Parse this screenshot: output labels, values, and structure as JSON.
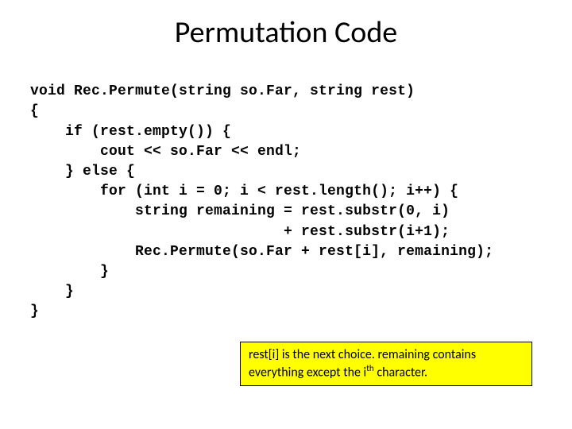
{
  "slide": {
    "title": "Permutation Code",
    "title_fontsize": 38,
    "title_color": "#000000",
    "background_color": "#ffffff"
  },
  "code": {
    "font_family": "Courier New",
    "font_weight": "bold",
    "font_size": 18,
    "color": "#000000",
    "lines": [
      "void Rec.Permute(string so.Far, string rest)",
      "{",
      "    if (rest.empty()) {",
      "        cout << so.Far << endl;",
      "    } else {",
      "        for (int i = 0; i < rest.length(); i++) {",
      "            string remaining = rest.substr(0, i)",
      "                             + rest.substr(i+1);",
      "            Rec.Permute(so.Far + rest[i], remaining);",
      "        }",
      "    }",
      "}"
    ]
  },
  "annotation": {
    "background_color": "#ffff00",
    "border_color": "#000000",
    "text_part1": "rest[i] is the next choice.  remaining contains everything except the i",
    "superscript": "th",
    "text_part2": " character.",
    "font_size": 16
  }
}
